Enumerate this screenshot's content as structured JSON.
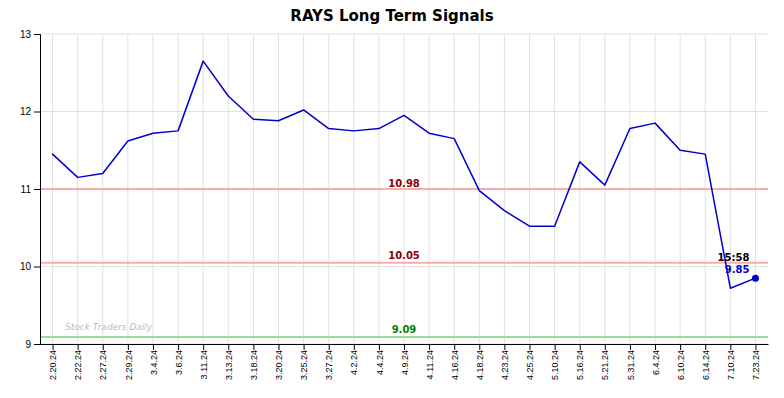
{
  "chart_data": {
    "type": "line",
    "title": "RAYS Long Term Signals",
    "categories": [
      "2.20.24",
      "2.22.24",
      "2.27.24",
      "2.29.24",
      "3.4.24",
      "3.6.24",
      "3.11.24",
      "3.13.24",
      "3.18.24",
      "3.20.24",
      "3.25.24",
      "3.27.24",
      "4.2.24",
      "4.4.24",
      "4.9.24",
      "4.11.24",
      "4.16.24",
      "4.18.24",
      "4.23.24",
      "4.25.24",
      "5.10.24",
      "5.16.24",
      "5.21.24",
      "5.31.24",
      "6.4.24",
      "6.10.24",
      "6.14.24",
      "7.10.24",
      "7.23.24"
    ],
    "values": [
      11.45,
      11.15,
      11.2,
      11.62,
      11.72,
      11.75,
      12.65,
      12.2,
      11.9,
      11.88,
      12.02,
      11.78,
      11.75,
      11.78,
      11.95,
      11.72,
      11.65,
      10.98,
      10.72,
      10.52,
      10.52,
      11.35,
      11.05,
      11.78,
      11.85,
      11.5,
      11.45,
      9.72,
      9.85
    ],
    "color": "#0000cc",
    "reference_lines": [
      {
        "value": 11.0,
        "color": "#ffaaaa"
      },
      {
        "value": 10.05,
        "color": "#ffaaaa"
      },
      {
        "value": 9.09,
        "color": "#99dd99"
      }
    ],
    "annotations": [
      {
        "text": "10.98",
        "x": "4.9.24",
        "y": 10.98,
        "color": "darkred"
      },
      {
        "text": "10.05",
        "x": "4.9.24",
        "y": 10.05,
        "color": "darkred"
      },
      {
        "text": "9.09",
        "x": "4.9.24",
        "y": 9.09,
        "color": "green"
      }
    ],
    "end_annotations": [
      {
        "text": "15:58",
        "color": "black"
      },
      {
        "text": "9.85",
        "color": "#0000cc"
      }
    ],
    "watermark": "Stock Traders Daily",
    "ylim": [
      9.0,
      13.0
    ],
    "yticks": [
      9,
      10,
      11,
      12,
      13
    ],
    "grid": true
  }
}
